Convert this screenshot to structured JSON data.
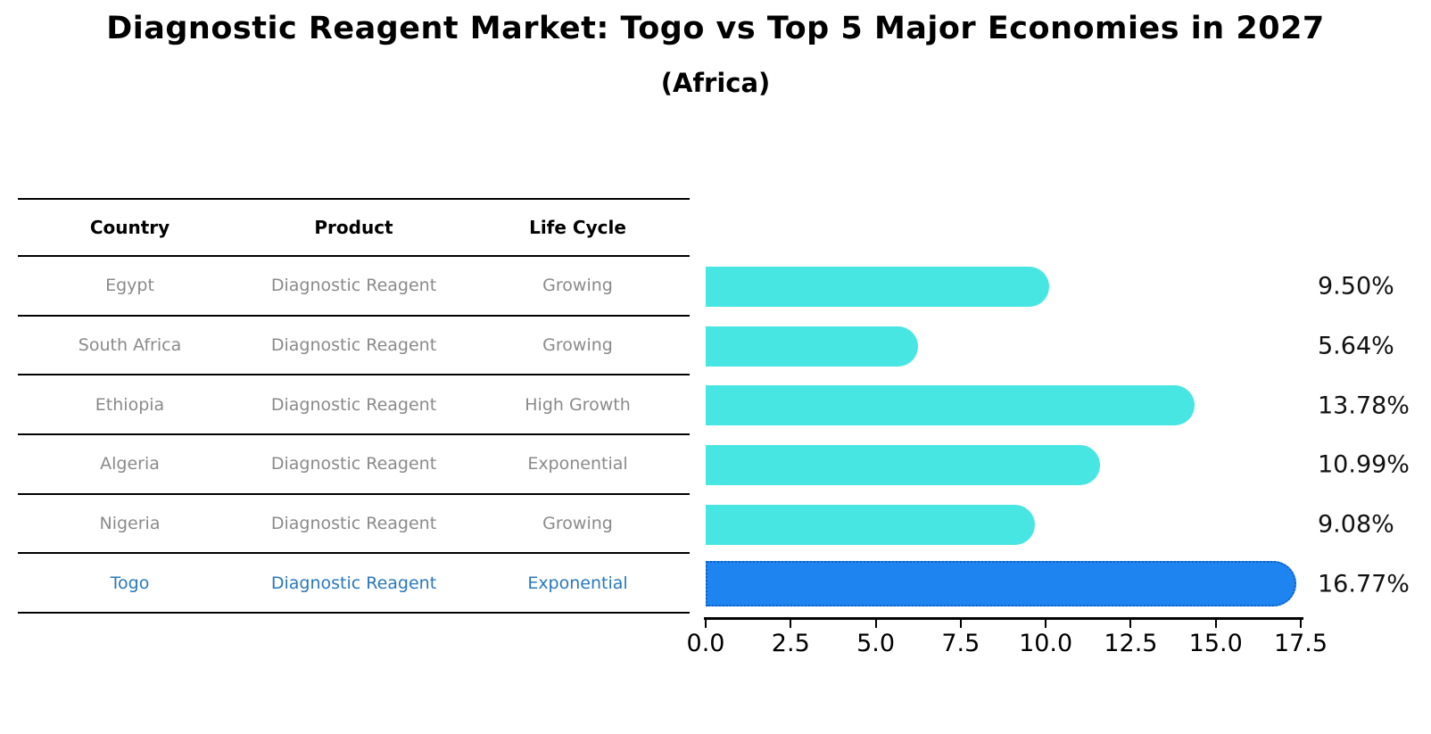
{
  "title": "Diagnostic Reagent Market: Togo vs Top 5 Major Economies in 2027",
  "subtitle": "(Africa)",
  "table": {
    "headers": [
      "Country",
      "Product",
      "Life Cycle"
    ],
    "rows": [
      {
        "country": "Egypt",
        "product": "Diagnostic Reagent",
        "life_cycle": "Growing",
        "highlight": false
      },
      {
        "country": "South Africa",
        "product": "Diagnostic Reagent",
        "life_cycle": "Growing",
        "highlight": false
      },
      {
        "country": "Ethiopia",
        "product": "Diagnostic Reagent",
        "life_cycle": "High Growth",
        "highlight": false
      },
      {
        "country": "Algeria",
        "product": "Diagnostic Reagent",
        "life_cycle": "Exponential",
        "highlight": false
      },
      {
        "country": "Nigeria",
        "product": "Diagnostic Reagent",
        "life_cycle": "Growing",
        "highlight": false
      },
      {
        "country": "Togo",
        "product": "Diagnostic Reagent",
        "life_cycle": "Exponential",
        "highlight": true
      }
    ]
  },
  "chart_data": {
    "type": "bar",
    "orientation": "horizontal",
    "title": "Diagnostic Reagent Market: Togo vs Top 5 Major Economies in 2027 (Africa)",
    "categories": [
      "Egypt",
      "South Africa",
      "Ethiopia",
      "Algeria",
      "Nigeria",
      "Togo"
    ],
    "values": [
      9.5,
      5.64,
      13.78,
      10.99,
      9.08,
      16.77
    ],
    "value_labels": [
      "9.50%",
      "5.64%",
      "13.78%",
      "10.99%",
      "9.08%",
      "16.77%"
    ],
    "x_tick_labels": [
      "0.0",
      "2.5",
      "5.0",
      "7.5",
      "10.0",
      "12.5",
      "15.0",
      "17.5"
    ],
    "x_ticks": [
      0,
      2.5,
      5,
      7.5,
      10,
      12.5,
      15,
      17.5
    ],
    "xlim": [
      0,
      17.5
    ],
    "grid": false,
    "legend": false,
    "highlight_index": 5,
    "bar_color": "#47e6e3",
    "highlight_bar_color": "#1e84f0",
    "highlight_border_color": "#0f5fc4",
    "highlight_text_color": "#2878be",
    "row_text_color": "#8a8a8a"
  }
}
